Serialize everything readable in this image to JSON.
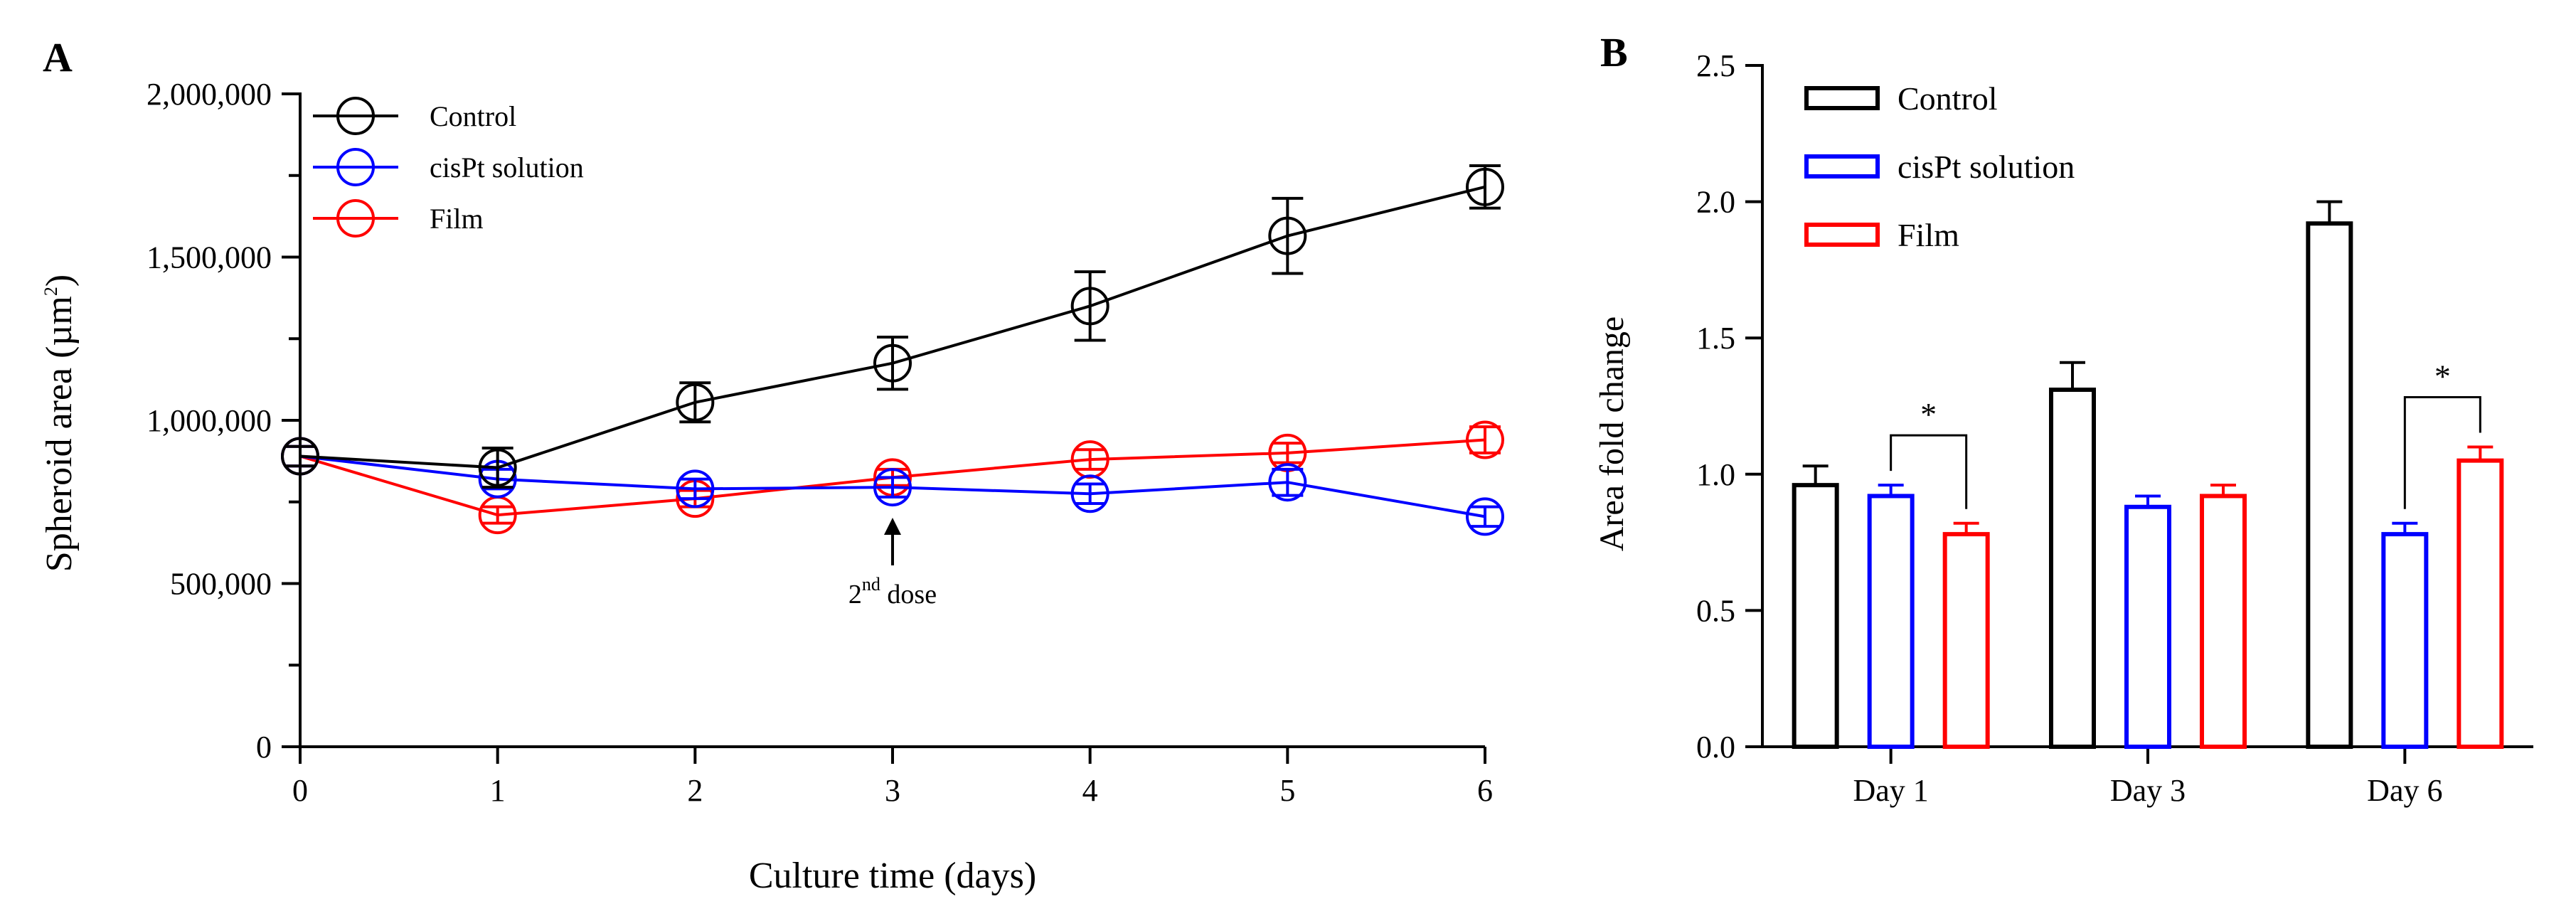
{
  "chart_data": [
    {
      "panel": "A",
      "type": "line",
      "xlabel": "Culture time (days)",
      "ylabel_main": "Spheroid area (µm",
      "ylabel_sup": "2",
      "ylabel_tail": ")",
      "x": [
        0,
        1,
        2,
        3,
        4,
        5,
        6
      ],
      "xlim": [
        0,
        6
      ],
      "ylim": [
        0,
        2000000
      ],
      "yticks": [
        0,
        500000,
        1000000,
        1500000,
        2000000
      ],
      "ytick_labels": [
        "0",
        "500,000",
        "1,000,000",
        "1,500,000",
        "2,000,000"
      ],
      "xtick_labels": [
        "0",
        "1",
        "2",
        "3",
        "4",
        "5",
        "6"
      ],
      "series": [
        {
          "name": "Control",
          "color": "#000000",
          "values": [
            890000,
            855000,
            1055000,
            1175000,
            1350000,
            1565000,
            1715000
          ],
          "errors": [
            30000,
            60000,
            60000,
            80000,
            105000,
            115000,
            65000
          ]
        },
        {
          "name": "cisPt solution",
          "color": "#0000ff",
          "values": [
            890000,
            820000,
            790000,
            795000,
            775000,
            810000,
            705000
          ],
          "errors": [
            30000,
            30000,
            30000,
            30000,
            30000,
            40000,
            30000
          ]
        },
        {
          "name": "Film",
          "color": "#ff0000",
          "values": [
            890000,
            710000,
            760000,
            825000,
            880000,
            900000,
            940000
          ],
          "errors": [
            30000,
            25000,
            25000,
            25000,
            30000,
            30000,
            40000
          ]
        }
      ],
      "annotation": {
        "x": 3,
        "label_main": "2",
        "label_sup": "nd",
        "label_tail": " dose"
      }
    },
    {
      "panel": "B",
      "type": "bar",
      "ylabel": "Area fold change",
      "categories": [
        "Day 1",
        "Day 3",
        "Day 6"
      ],
      "ylim": [
        0,
        2.5
      ],
      "yticks": [
        0,
        0.5,
        1.0,
        1.5,
        2.0,
        2.5
      ],
      "ytick_labels": [
        "0.0",
        "0.5",
        "1.0",
        "1.5",
        "2.0",
        "2.5"
      ],
      "series": [
        {
          "name": "Control",
          "color": "#000000",
          "values": [
            0.96,
            1.31,
            1.92
          ],
          "errors": [
            0.07,
            0.1,
            0.08
          ]
        },
        {
          "name": "cisPt solution",
          "color": "#0000ff",
          "values": [
            0.92,
            0.88,
            0.78
          ],
          "errors": [
            0.04,
            0.04,
            0.04
          ]
        },
        {
          "name": "Film",
          "color": "#ff0000",
          "values": [
            0.78,
            0.92,
            1.05
          ],
          "errors": [
            0.04,
            0.04,
            0.05
          ]
        }
      ],
      "significance": [
        {
          "category": "Day 1",
          "between": [
            "cisPt solution",
            "Film"
          ],
          "label": "*"
        },
        {
          "category": "Day 6",
          "between": [
            "cisPt solution",
            "Film"
          ],
          "label": "*"
        }
      ]
    }
  ],
  "labels": {
    "panel_a": "A",
    "panel_b": "B"
  }
}
